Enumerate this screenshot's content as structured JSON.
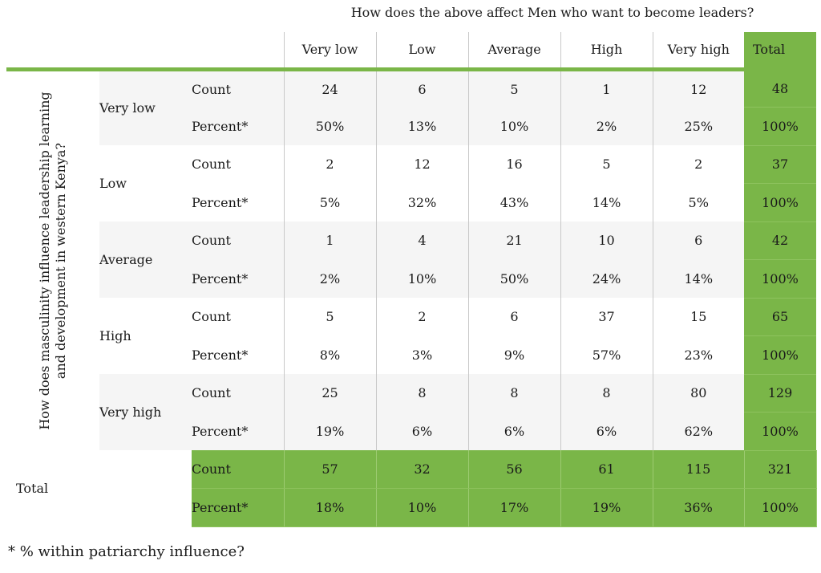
{
  "title": "How does the above affect Men who want to become leaders?",
  "row_axis_label": "How does masculinity influence leadership learning and development in western Kenya?",
  "columns": [
    "Very low",
    "Low",
    "Average",
    "High",
    "Very high",
    "Total"
  ],
  "rows": [
    {
      "label": "Very low",
      "count_label": "Count",
      "percent_label": "Percent*",
      "counts": [
        "24",
        "6",
        "5",
        "1",
        "12",
        "48"
      ],
      "percents": [
        "50%",
        "13%",
        "10%",
        "2%",
        "25%",
        "100%"
      ]
    },
    {
      "label": "Low",
      "count_label": "Count",
      "percent_label": "Percent*",
      "counts": [
        "2",
        "12",
        "16",
        "5",
        "2",
        "37"
      ],
      "percents": [
        "5%",
        "32%",
        "43%",
        "14%",
        "5%",
        "100%"
      ]
    },
    {
      "label": "Average",
      "count_label": "Count",
      "percent_label": "Percent*",
      "counts": [
        "1",
        "4",
        "21",
        "10",
        "6",
        "42"
      ],
      "percents": [
        "2%",
        "10%",
        "50%",
        "24%",
        "14%",
        "100%"
      ]
    },
    {
      "label": "High",
      "count_label": "Count",
      "percent_label": "Percent*",
      "counts": [
        "5",
        "2",
        "6",
        "37",
        "15",
        "65"
      ],
      "percents": [
        "8%",
        "3%",
        "9%",
        "57%",
        "23%",
        "100%"
      ]
    },
    {
      "label": "Very high",
      "count_label": "Count",
      "percent_label": "Percent*",
      "counts": [
        "25",
        "8",
        "8",
        "8",
        "80",
        "129"
      ],
      "percents": [
        "19%",
        "6%",
        "6%",
        "6%",
        "62%",
        "100%"
      ]
    }
  ],
  "total": {
    "label": "Total",
    "count_label": "Count",
    "percent_label": "Percent*",
    "counts": [
      "57",
      "32",
      "56",
      "61",
      "115",
      "321"
    ],
    "percents": [
      "18%",
      "10%",
      "17%",
      "19%",
      "36%",
      "100%"
    ]
  },
  "footnote": "* % within patriarchy influence?",
  "colors": {
    "accent_green": "#7ab648",
    "row_band_grey": "#f5f5f5"
  }
}
